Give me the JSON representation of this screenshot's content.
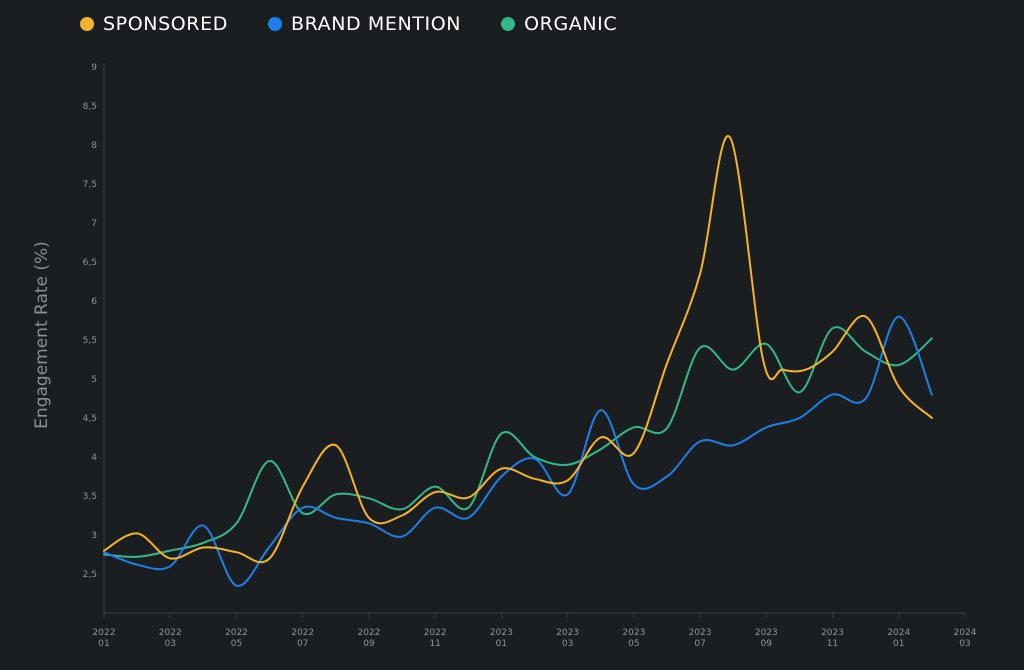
{
  "chart_data": {
    "type": "line",
    "title": "",
    "xlabel": "",
    "ylabel": "Engagement Rate (%)",
    "ylim": [
      2,
      9
    ],
    "legend_position": "top-left",
    "grid": false,
    "y_ticks": [
      {
        "value": 2.5,
        "label": "2,5"
      },
      {
        "value": 3,
        "label": "3"
      },
      {
        "value": 3.5,
        "label": "3,5"
      },
      {
        "value": 4,
        "label": "4"
      },
      {
        "value": 4.5,
        "label": "4,5"
      },
      {
        "value": 5,
        "label": "5"
      },
      {
        "value": 5.5,
        "label": "5,5"
      },
      {
        "value": 6,
        "label": "6"
      },
      {
        "value": 6.5,
        "label": "6,5"
      },
      {
        "value": 7,
        "label": "7"
      },
      {
        "value": 7.5,
        "label": "7,5"
      },
      {
        "value": 8,
        "label": "8"
      },
      {
        "value": 8.5,
        "label": "8,5"
      },
      {
        "value": 9,
        "label": "9"
      }
    ],
    "x_ticks": [
      {
        "value": 0,
        "year": "2022",
        "month": "01"
      },
      {
        "value": 2,
        "year": "2022",
        "month": "03"
      },
      {
        "value": 4,
        "year": "2022",
        "month": "05"
      },
      {
        "value": 6,
        "year": "2022",
        "month": "07"
      },
      {
        "value": 8,
        "year": "2022",
        "month": "09"
      },
      {
        "value": 10,
        "year": "2022",
        "month": "11"
      },
      {
        "value": 12,
        "year": "2023",
        "month": "01"
      },
      {
        "value": 14,
        "year": "2023",
        "month": "03"
      },
      {
        "value": 16,
        "year": "2023",
        "month": "05"
      },
      {
        "value": 18,
        "year": "2023",
        "month": "07"
      },
      {
        "value": 20,
        "year": "2023",
        "month": "09"
      },
      {
        "value": 22,
        "year": "2023",
        "month": "11"
      },
      {
        "value": 24,
        "year": "2024",
        "month": "01"
      },
      {
        "value": 26,
        "year": "2024",
        "month": "03"
      }
    ],
    "x_range": [
      0,
      26
    ],
    "series": [
      {
        "name": "SPONSORED",
        "color": "#f5b32a",
        "points": [
          [
            0,
            2.8
          ],
          [
            1,
            3.02
          ],
          [
            2,
            2.7
          ],
          [
            3,
            2.84
          ],
          [
            4,
            2.78
          ],
          [
            5,
            2.7
          ],
          [
            6,
            3.62
          ],
          [
            7,
            4.15
          ],
          [
            8,
            3.22
          ],
          [
            9,
            3.25
          ],
          [
            10,
            3.55
          ],
          [
            11,
            3.48
          ],
          [
            12,
            3.85
          ],
          [
            13,
            3.72
          ],
          [
            14,
            3.7
          ],
          [
            15,
            4.25
          ],
          [
            16,
            4.05
          ],
          [
            17,
            5.2
          ],
          [
            18,
            6.35
          ],
          [
            18.9,
            8.1
          ],
          [
            19.9,
            5.25
          ],
          [
            20.5,
            5.12
          ],
          [
            21.2,
            5.12
          ],
          [
            22,
            5.35
          ],
          [
            23,
            5.8
          ],
          [
            24,
            4.9
          ],
          [
            25,
            4.5
          ]
        ]
      },
      {
        "name": "BRAND MENTION",
        "color": "#1f7fe8",
        "points": [
          [
            0,
            2.78
          ],
          [
            1,
            2.62
          ],
          [
            2,
            2.6
          ],
          [
            3,
            3.12
          ],
          [
            4,
            2.35
          ],
          [
            5,
            2.85
          ],
          [
            6,
            3.35
          ],
          [
            7,
            3.22
          ],
          [
            8,
            3.15
          ],
          [
            9,
            2.98
          ],
          [
            10,
            3.35
          ],
          [
            11,
            3.22
          ],
          [
            12,
            3.75
          ],
          [
            13,
            3.98
          ],
          [
            14,
            3.52
          ],
          [
            15,
            4.6
          ],
          [
            16,
            3.65
          ],
          [
            17,
            3.75
          ],
          [
            18,
            4.2
          ],
          [
            19,
            4.15
          ],
          [
            20,
            4.38
          ],
          [
            21,
            4.5
          ],
          [
            22,
            4.8
          ],
          [
            23,
            4.75
          ],
          [
            24,
            5.8
          ],
          [
            25,
            4.8
          ]
        ]
      },
      {
        "name": "ORGANIC",
        "color": "#34b888",
        "points": [
          [
            0,
            2.75
          ],
          [
            1,
            2.72
          ],
          [
            2,
            2.8
          ],
          [
            3,
            2.9
          ],
          [
            4,
            3.15
          ],
          [
            5,
            3.95
          ],
          [
            6,
            3.28
          ],
          [
            7,
            3.52
          ],
          [
            8,
            3.47
          ],
          [
            9,
            3.33
          ],
          [
            10,
            3.62
          ],
          [
            11,
            3.35
          ],
          [
            12,
            4.3
          ],
          [
            13,
            4
          ],
          [
            14,
            3.9
          ],
          [
            15,
            4.1
          ],
          [
            16,
            4.38
          ],
          [
            17,
            4.37
          ],
          [
            18,
            5.4
          ],
          [
            19,
            5.12
          ],
          [
            20,
            5.45
          ],
          [
            21,
            4.83
          ],
          [
            22,
            5.65
          ],
          [
            23,
            5.35
          ],
          [
            24,
            5.18
          ],
          [
            25,
            5.52
          ]
        ]
      }
    ]
  }
}
